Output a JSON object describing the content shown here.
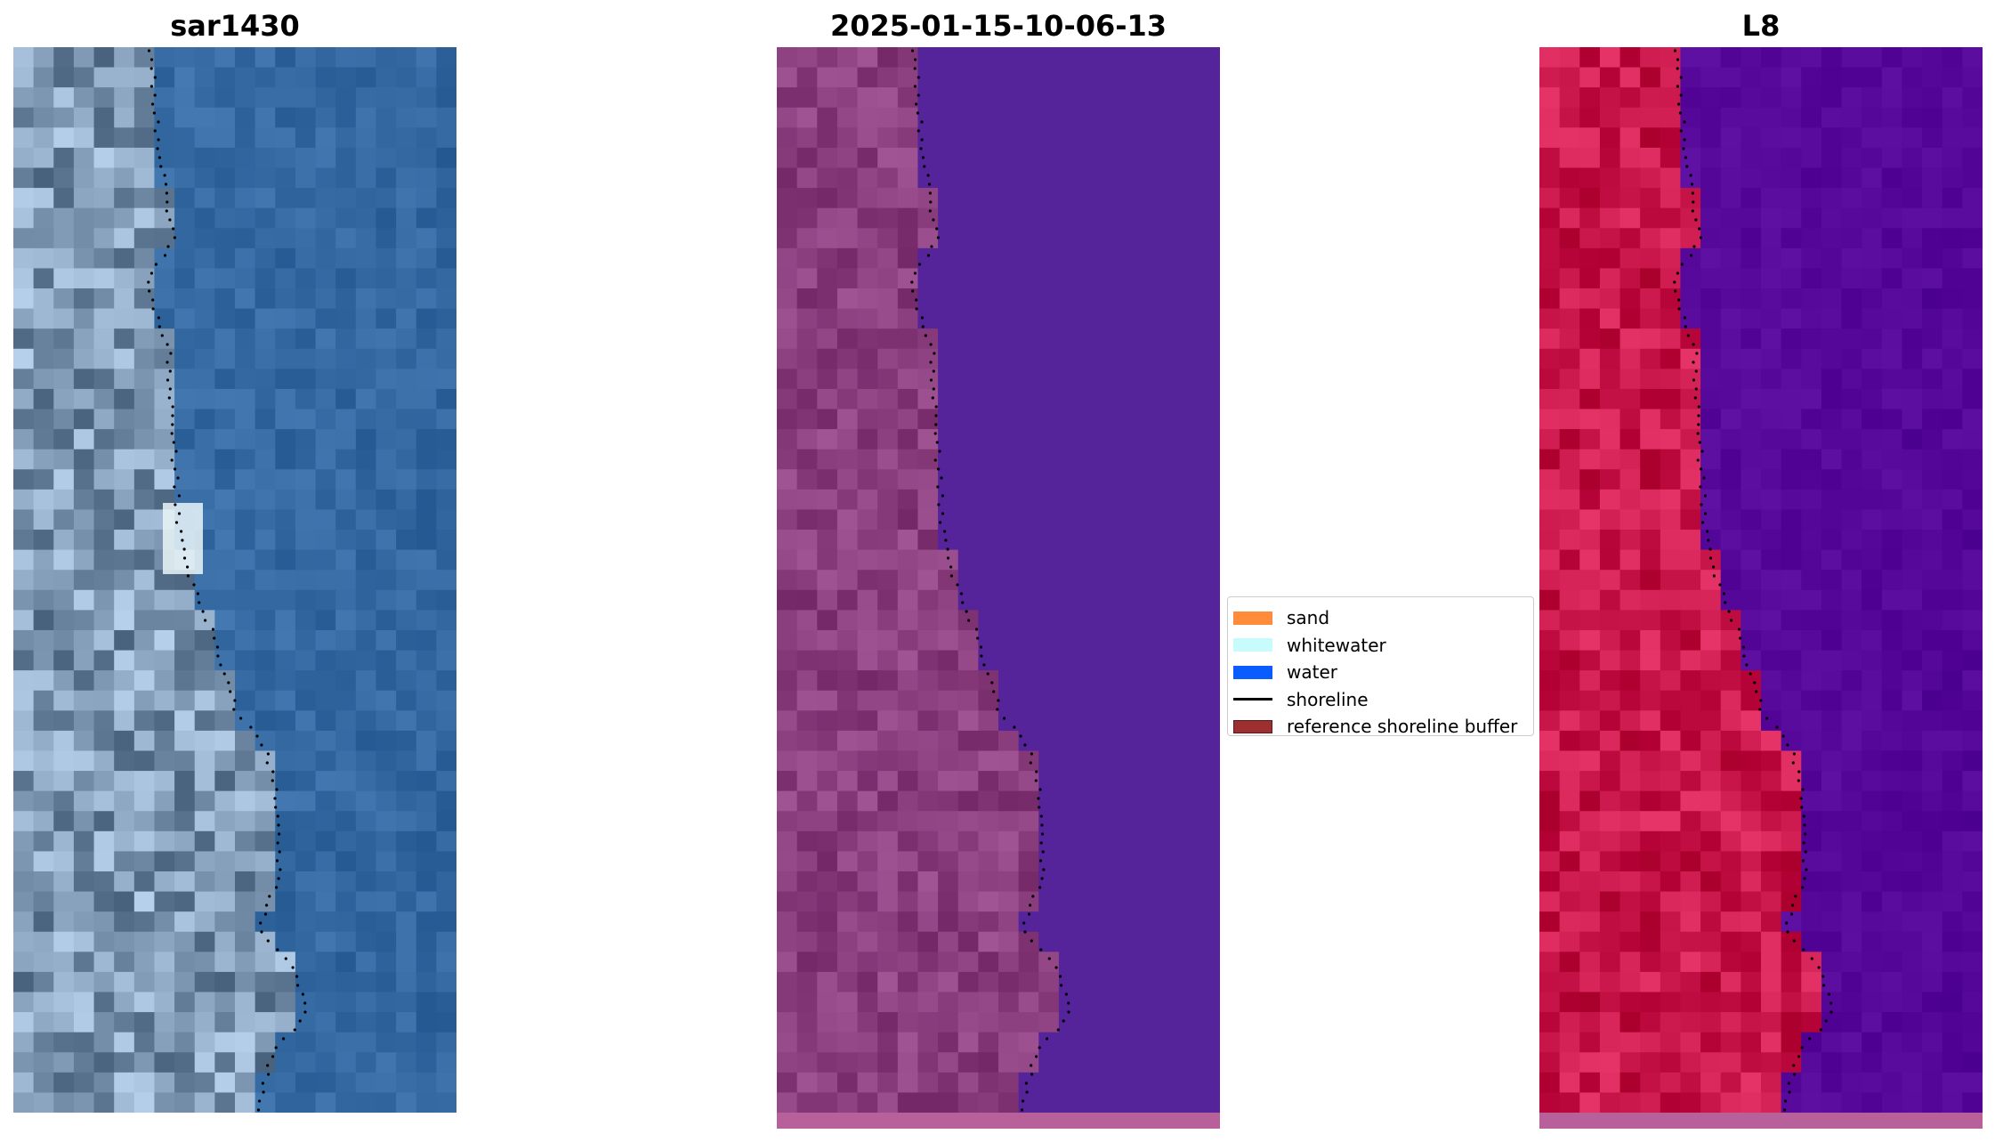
{
  "panels": [
    {
      "title": "sar1430",
      "kind": "rgb"
    },
    {
      "title": "2025-01-15-10-06-13",
      "kind": "classified"
    },
    {
      "title": "L8",
      "kind": "ndwi"
    }
  ],
  "legend": {
    "items": [
      {
        "label": "sand",
        "color": "#ff8c3a",
        "type": "patch"
      },
      {
        "label": "whitewater",
        "color": "#c8fbfb",
        "type": "patch"
      },
      {
        "label": "water",
        "color": "#0a5cff",
        "type": "patch"
      },
      {
        "label": "shoreline",
        "color": "#000000",
        "type": "line"
      },
      {
        "label": "reference shoreline buffer",
        "color": "#9c3030",
        "type": "patch"
      }
    ]
  },
  "colors": {
    "water_rgb": "#3a6ea7",
    "land_rgb": "#7f98b4",
    "water_classified": "#55239a",
    "land_classified": "#8a3e7e",
    "water_ndwi": "#580b9c",
    "land_ndwi": "#c8164a",
    "shoreline": "#000000"
  }
}
